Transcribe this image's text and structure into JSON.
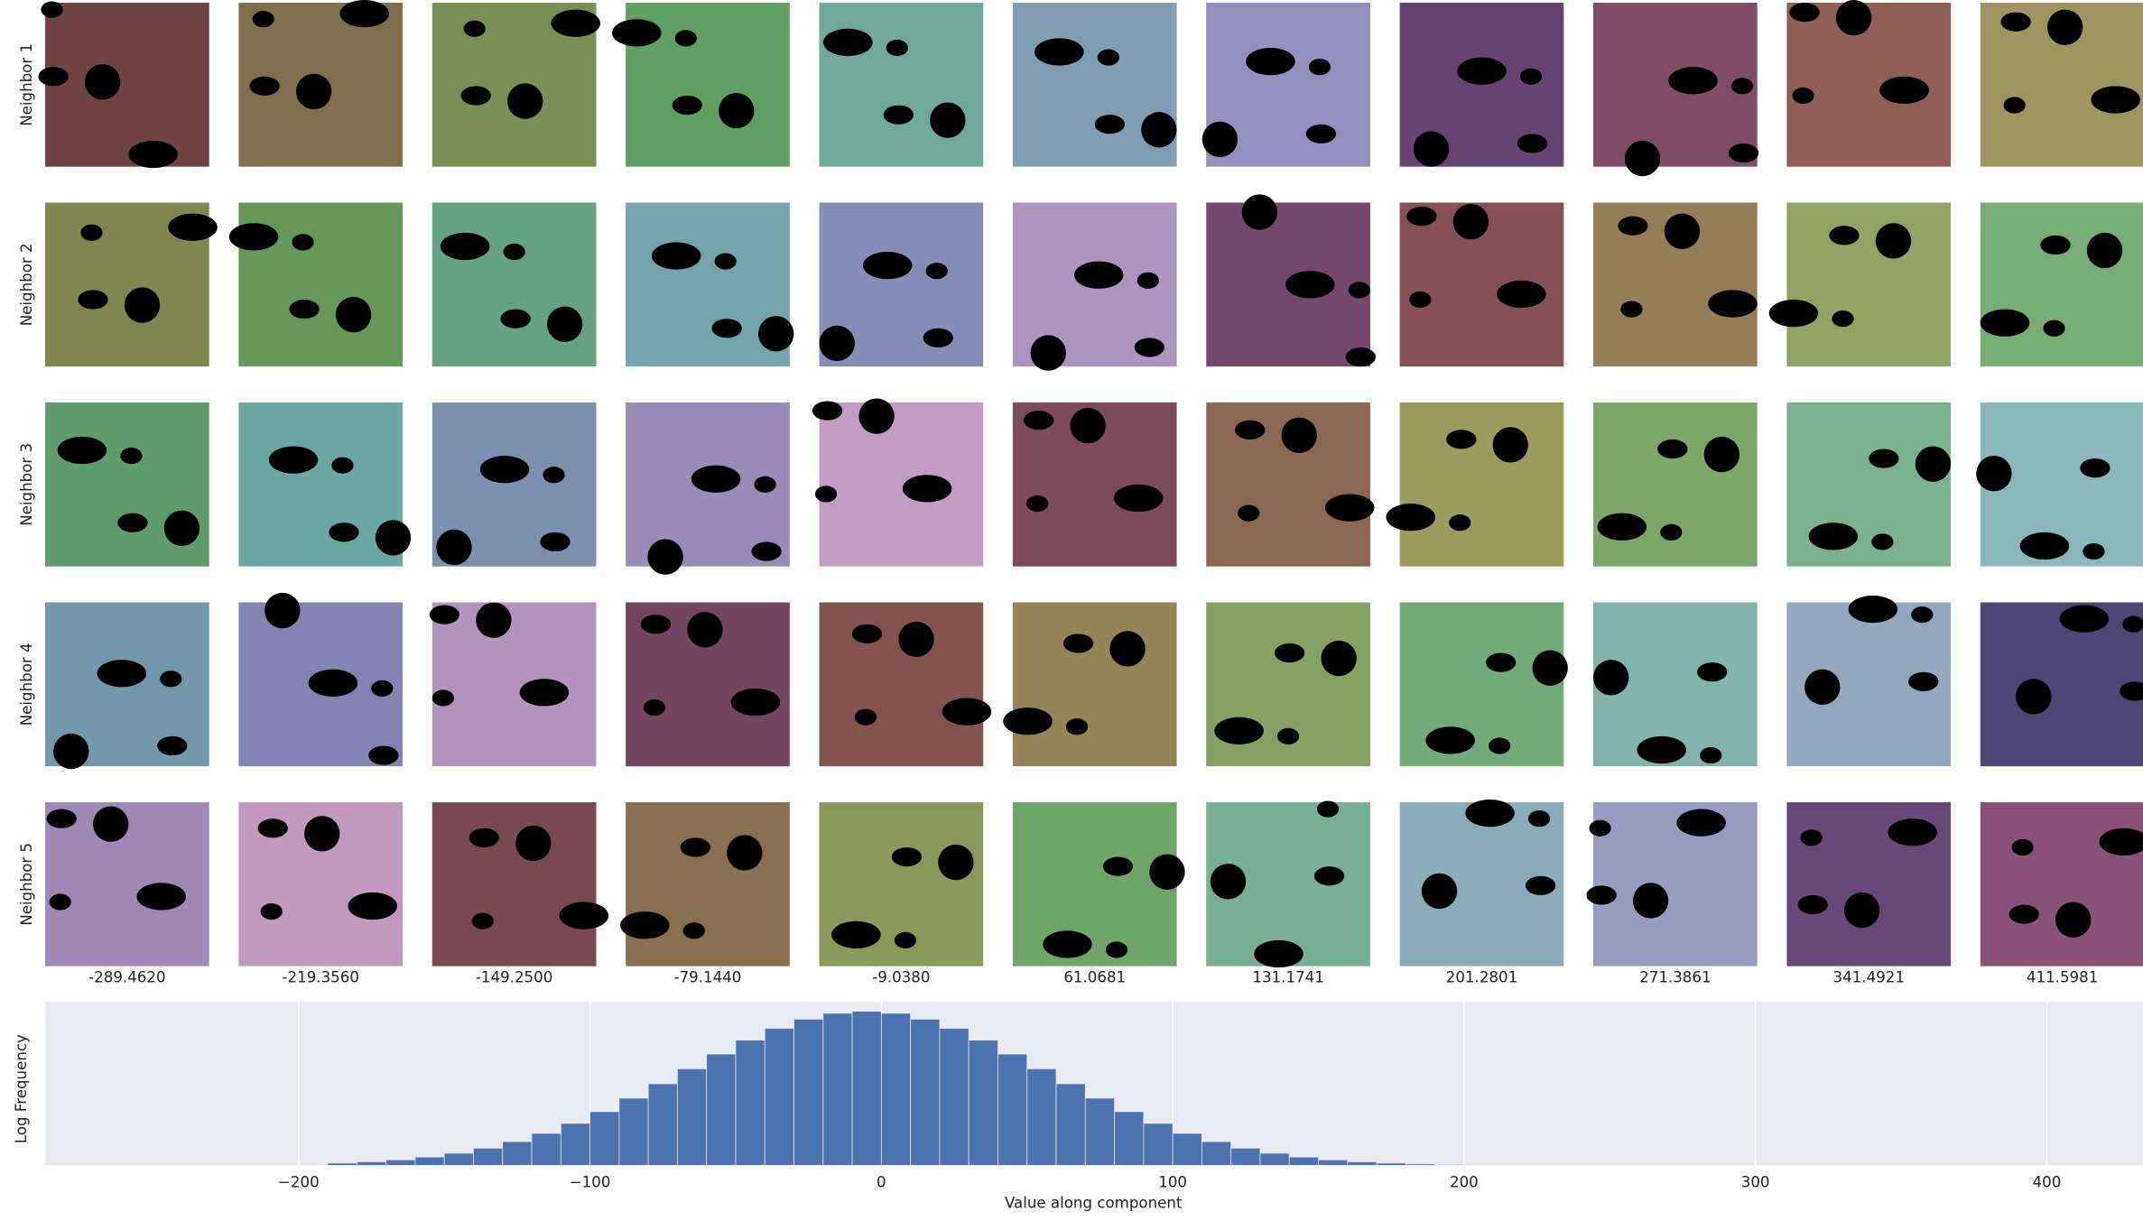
{
  "image_grid": {
    "row_labels": [
      "Neighbor 1",
      "Neighbor 2",
      "Neighbor 3",
      "Neighbor 4",
      "Neighbor 5"
    ],
    "column_labels": [
      "-289.4620",
      "-219.3560",
      "-149.2500",
      "-79.1440",
      "-9.0380",
      "61.0681",
      "131.1741",
      "201.2801",
      "271.3861",
      "341.4921",
      "411.5981"
    ]
  },
  "chart_data": {
    "type": "histogram",
    "xlabel": "Value along component",
    "ylabel": "Log Frequency",
    "bins": [
      -190,
      -180,
      -170,
      -160,
      -150,
      -140,
      -130,
      -120,
      -110,
      -100,
      -90,
      -80,
      -70,
      -60,
      -50,
      -40,
      -30,
      -20,
      -10,
      0,
      10,
      20,
      30,
      40,
      50,
      60,
      70,
      80,
      90,
      100,
      110,
      120,
      130,
      140,
      150,
      160,
      170,
      180,
      190,
      200
    ],
    "values": [
      0.014,
      0.022,
      0.034,
      0.051,
      0.074,
      0.105,
      0.145,
      0.195,
      0.256,
      0.328,
      0.41,
      0.498,
      0.589,
      0.679,
      0.764,
      0.836,
      0.892,
      0.928,
      0.94,
      0.928,
      0.892,
      0.836,
      0.764,
      0.679,
      0.589,
      0.498,
      0.41,
      0.328,
      0.256,
      0.195,
      0.145,
      0.105,
      0.074,
      0.051,
      0.034,
      0.022,
      0.014,
      0.009,
      0.005
    ],
    "color": "#4c72b0",
    "xlim": [
      -287,
      433
    ],
    "ylim": [
      0,
      1
    ],
    "xticks": [
      {
        "value": -200,
        "label": "−200"
      },
      {
        "value": -100,
        "label": "−100"
      },
      0,
      100,
      200,
      300,
      400
    ],
    "grid": true
  }
}
